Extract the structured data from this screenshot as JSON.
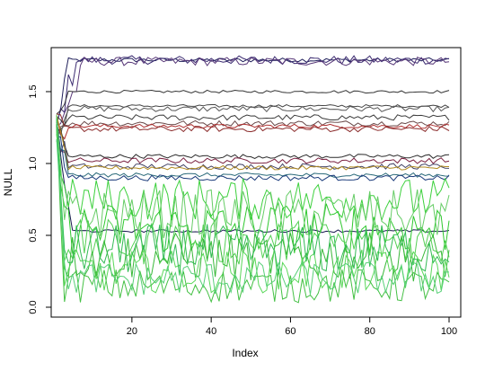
{
  "chart_data": {
    "type": "line",
    "title": "",
    "xlabel": "Index",
    "ylabel": "NULL",
    "xlim": [
      1,
      100
    ],
    "ylim": [
      0,
      1.75
    ],
    "x_ticks": [
      20,
      40,
      60,
      80,
      100
    ],
    "x_tick_labels": [
      "20",
      "40",
      "60",
      "80",
      "100"
    ],
    "y_ticks": [
      0.0,
      0.5,
      1.0,
      1.5
    ],
    "y_tick_labels": [
      "0.0",
      "0.5",
      "1.0",
      "1.5"
    ],
    "grid": false,
    "legend": "none",
    "n_points": 100,
    "start_value": 1.25,
    "series_groups": [
      {
        "color": "#1f1f5a",
        "level": 1.72,
        "noise": 0.015,
        "settle": 3
      },
      {
        "color": "#3a2a70",
        "level": 1.72,
        "noise": 0.03,
        "settle": 5
      },
      {
        "color": "#5a3a7a",
        "level": 1.71,
        "noise": 0.03,
        "settle": 8
      },
      {
        "color": "#333333",
        "level": 1.5,
        "noise": 0.01,
        "settle": 3
      },
      {
        "color": "#444444",
        "level": 1.4,
        "noise": 0.01,
        "settle": 3
      },
      {
        "color": "#555555",
        "level": 1.38,
        "noise": 0.02,
        "settle": 3
      },
      {
        "color": "#3a3a3a",
        "level": 1.32,
        "noise": 0.02,
        "settle": 3
      },
      {
        "color": "#6a4a4a",
        "level": 1.28,
        "noise": 0.02,
        "settle": 3
      },
      {
        "color": "#b03030",
        "level": 1.26,
        "noise": 0.015,
        "settle": 3
      },
      {
        "color": "#8a2a2a",
        "level": 1.24,
        "noise": 0.02,
        "settle": 3
      },
      {
        "color": "#2a2a2a",
        "level": 1.05,
        "noise": 0.015,
        "settle": 3
      },
      {
        "color": "#7a2040",
        "level": 1.02,
        "noise": 0.02,
        "settle": 3
      },
      {
        "color": "#444466",
        "level": 0.98,
        "noise": 0.02,
        "settle": 3
      },
      {
        "color": "#b08a20",
        "level": 0.97,
        "noise": 0.015,
        "settle": 3
      },
      {
        "color": "#2a6a7a",
        "level": 0.92,
        "noise": 0.015,
        "settle": 3
      },
      {
        "color": "#1a3a7a",
        "level": 0.9,
        "noise": 0.02,
        "settle": 3
      },
      {
        "color": "#1a1a50",
        "level": 0.53,
        "noise": 0.01,
        "settle": 4
      },
      {
        "color": "#3cd03c",
        "level": 0.75,
        "noise": 0.15,
        "settle": 2
      },
      {
        "color": "#2ec82e",
        "level": 0.55,
        "noise": 0.18,
        "settle": 2
      },
      {
        "color": "#55d055",
        "level": 0.45,
        "noise": 0.16,
        "settle": 2
      },
      {
        "color": "#3ab83a",
        "level": 0.35,
        "noise": 0.17,
        "settle": 2
      },
      {
        "color": "#5ad85a",
        "level": 0.25,
        "noise": 0.15,
        "settle": 2
      },
      {
        "color": "#44c044",
        "level": 0.15,
        "noise": 0.12,
        "settle": 2
      },
      {
        "color": "#66cc66",
        "level": 0.65,
        "noise": 0.17,
        "settle": 2
      },
      {
        "color": "#33bb55",
        "level": 0.4,
        "noise": 0.18,
        "settle": 2
      },
      {
        "color": "#58d078",
        "level": 0.2,
        "noise": 0.12,
        "settle": 2
      }
    ]
  }
}
